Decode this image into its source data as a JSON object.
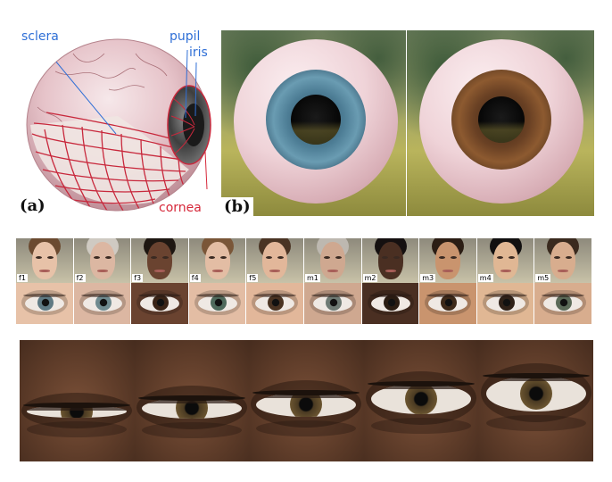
{
  "panel_a": {
    "labels": {
      "sclera": "sclera",
      "pupil": "pupil",
      "iris": "iris",
      "cornea": "cornea"
    },
    "tag": "(a)",
    "colors": {
      "label_blue": "#2f6fd6",
      "label_red": "#d6283a",
      "mesh": "#c8283c"
    }
  },
  "panel_b": {
    "tag": "(b)",
    "eyes": [
      {
        "iris_color": "blue-grey"
      },
      {
        "iris_color": "brown"
      }
    ]
  },
  "subjects": {
    "labels": [
      "f1",
      "f2",
      "f3",
      "f4",
      "f5",
      "m1",
      "m2",
      "m3",
      "m4",
      "m5"
    ]
  }
}
